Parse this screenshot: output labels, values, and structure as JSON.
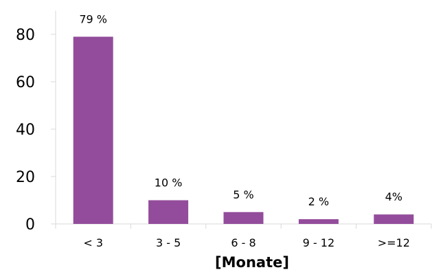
{
  "chart_data": {
    "type": "bar",
    "title": "",
    "xlabel": "[Monate]",
    "ylabel": "",
    "categories": [
      "< 3",
      "3 - 5",
      "6 - 8",
      "9 - 12",
      ">=12"
    ],
    "values": [
      79,
      10,
      5,
      2,
      4
    ],
    "data_labels": [
      "79 %",
      "10 %",
      "5 %",
      "2 %",
      "4%"
    ],
    "ylim": [
      0,
      90
    ],
    "yticks": [
      0,
      20,
      40,
      60,
      80
    ],
    "grid": false,
    "legend": "none",
    "bar_color": "#934C9B"
  }
}
